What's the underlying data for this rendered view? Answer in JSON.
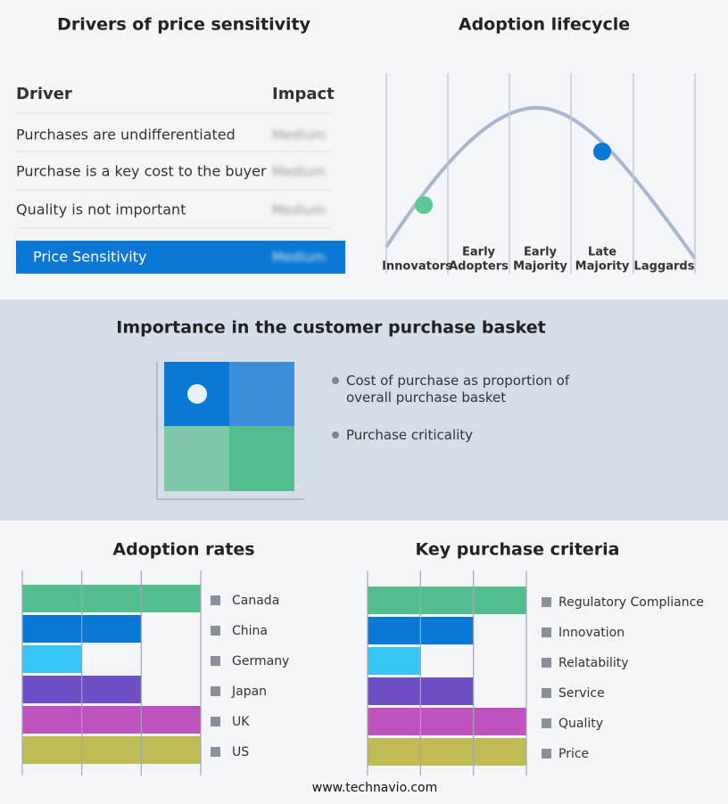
{
  "drivers": {
    "title": "Drivers of price sensitivity",
    "header": [
      "Driver",
      "Impact"
    ],
    "rows": [
      [
        "Purchases are undifferentiated",
        "Medium"
      ],
      [
        "Purchase is a key cost to the buyer",
        "Medium"
      ],
      [
        "Quality is not important",
        "Medium"
      ]
    ],
    "summary": [
      "Price Sensitivity",
      "Medium"
    ]
  },
  "lifecycle": {
    "title": "Adoption lifecycle",
    "stages": [
      [
        "Innovators"
      ],
      [
        "Early",
        "Adopters"
      ],
      [
        "Early",
        "Majority"
      ],
      [
        "Late",
        "Majority"
      ],
      [
        "Laggards"
      ]
    ]
  },
  "basket": {
    "title": "Importance in the customer purchase basket",
    "legend": [
      "Cost of purchase as proportion of overall purchase basket",
      "Purchase criticality"
    ]
  },
  "chart_data": [
    {
      "type": "bar",
      "title": "Adoption rates",
      "categories": [
        "Canada",
        "China",
        "Germany",
        "Japan",
        "UK",
        "US"
      ],
      "values": [
        3,
        2,
        1,
        2,
        3,
        3
      ],
      "colors": [
        "#52be8e",
        "#0a78d4",
        "#36c5f4",
        "#6f4fc4",
        "#c052c0",
        "#bfbb55"
      ],
      "xlim": [
        0,
        3
      ],
      "xticks": [
        0,
        1,
        2,
        3
      ],
      "grid": true
    },
    {
      "type": "bar",
      "title": "Key purchase criteria",
      "categories": [
        "Regulatory Compliance",
        "Innovation",
        "Relatability",
        "Service",
        "Quality",
        "Price"
      ],
      "values": [
        3,
        2,
        1,
        2,
        3,
        3
      ],
      "colors": [
        "#52be8e",
        "#0a78d4",
        "#36c5f4",
        "#6f4fc4",
        "#c052c0",
        "#bfbb55"
      ],
      "xlim": [
        0,
        3
      ],
      "xticks": [
        0,
        1,
        2,
        3
      ],
      "grid": true
    }
  ],
  "footer": "www.technavio.com"
}
